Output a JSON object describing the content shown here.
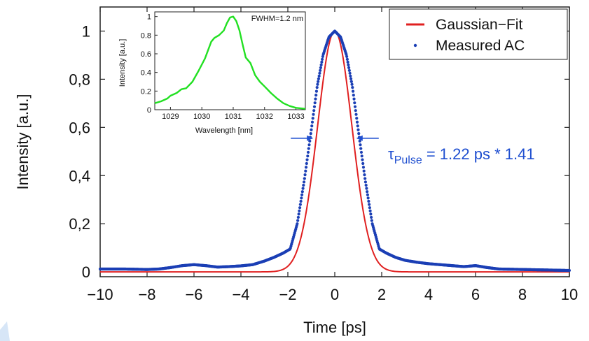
{
  "chart_data": [
    {
      "type": "line",
      "xlabel": "Time [ps]",
      "ylabel": "Intensity [a.u.]",
      "xlim": [
        -10,
        10
      ],
      "ylim": [
        -0.02,
        1.1
      ],
      "x_ticks": [
        -10,
        -8,
        -6,
        -4,
        -2,
        0,
        2,
        4,
        6,
        8,
        10
      ],
      "x_tick_labels": [
        "−10",
        "−8",
        "−6",
        "−4",
        "−2",
        "0",
        "2",
        "4",
        "6",
        "8",
        "10"
      ],
      "y_ticks": [
        0,
        0.2,
        0.4,
        0.6,
        0.8,
        1
      ],
      "y_tick_labels": [
        "0",
        "0,2",
        "0,4",
        "0,6",
        "0,8",
        "1"
      ],
      "grid": false,
      "legend_placement": "top-right",
      "series": [
        {
          "name": "Gaussian−Fit",
          "color": "#e02020",
          "style": "line",
          "peak": 1.0,
          "fwhm": 1.72,
          "center": 0
        },
        {
          "name": "Measured AC",
          "color": "#1b3fb5",
          "style": "dots",
          "x": [
            -10,
            -9,
            -8,
            -7.5,
            -7,
            -6.5,
            -6,
            -5.5,
            -5,
            -4.5,
            -4,
            -3.5,
            -3,
            -2.6,
            -2.2,
            -1.9,
            -1.6,
            -1.3,
            -1.0,
            -0.75,
            -0.5,
            -0.25,
            0,
            0.25,
            0.5,
            0.75,
            1.0,
            1.3,
            1.6,
            1.9,
            2.2,
            2.6,
            3,
            3.5,
            4,
            4.5,
            5,
            5.5,
            6,
            6.5,
            7,
            8,
            9,
            10
          ],
          "y": [
            0.012,
            0.012,
            0.01,
            0.012,
            0.018,
            0.026,
            0.03,
            0.026,
            0.02,
            0.022,
            0.025,
            0.03,
            0.045,
            0.06,
            0.078,
            0.095,
            0.2,
            0.38,
            0.59,
            0.77,
            0.9,
            0.975,
            1.0,
            0.975,
            0.9,
            0.77,
            0.59,
            0.38,
            0.2,
            0.095,
            0.078,
            0.06,
            0.048,
            0.04,
            0.034,
            0.03,
            0.026,
            0.022,
            0.026,
            0.018,
            0.012,
            0.01,
            0.008,
            0.006
          ]
        }
      ],
      "annotation": {
        "text_base": "τ",
        "text_sub": "Pulse",
        "text_rest": " = 1.22 ps * 1.41",
        "color": "#1f4fd0",
        "fwhm_marks": [
          -0.86,
          0.86
        ],
        "level": 0.5
      }
    },
    {
      "type": "line",
      "placement": "inset top-left",
      "title": "FWHM=1.2 nm",
      "xlabel": "Wavelength [nm]",
      "ylabel": "Intensity [a.u.]",
      "xlim": [
        1028.5,
        1033.3
      ],
      "ylim": [
        0,
        1.05
      ],
      "x_ticks": [
        1029,
        1030,
        1031,
        1032,
        1033
      ],
      "x_tick_labels": [
        "1029",
        "1030",
        "1031",
        "1032",
        "1033"
      ],
      "y_ticks": [
        0,
        0.2,
        0.4,
        0.6,
        0.8,
        1
      ],
      "y_tick_labels": [
        "0",
        "0.2",
        "0.4",
        "0.6",
        "0.8",
        "1"
      ],
      "series": [
        {
          "color": "#22e022",
          "x": [
            1028.5,
            1028.7,
            1028.9,
            1029.0,
            1029.2,
            1029.35,
            1029.5,
            1029.7,
            1029.9,
            1030.1,
            1030.3,
            1030.4,
            1030.55,
            1030.7,
            1030.8,
            1030.9,
            1031.0,
            1031.1,
            1031.2,
            1031.3,
            1031.4,
            1031.55,
            1031.7,
            1031.85,
            1032.0,
            1032.2,
            1032.4,
            1032.6,
            1032.8,
            1033.0,
            1033.3
          ],
          "y": [
            0.07,
            0.09,
            0.12,
            0.15,
            0.18,
            0.22,
            0.23,
            0.3,
            0.42,
            0.55,
            0.73,
            0.77,
            0.8,
            0.85,
            0.93,
            0.99,
            1.0,
            0.95,
            0.85,
            0.7,
            0.56,
            0.5,
            0.37,
            0.3,
            0.25,
            0.18,
            0.12,
            0.07,
            0.04,
            0.02,
            0.01
          ]
        }
      ]
    }
  ]
}
